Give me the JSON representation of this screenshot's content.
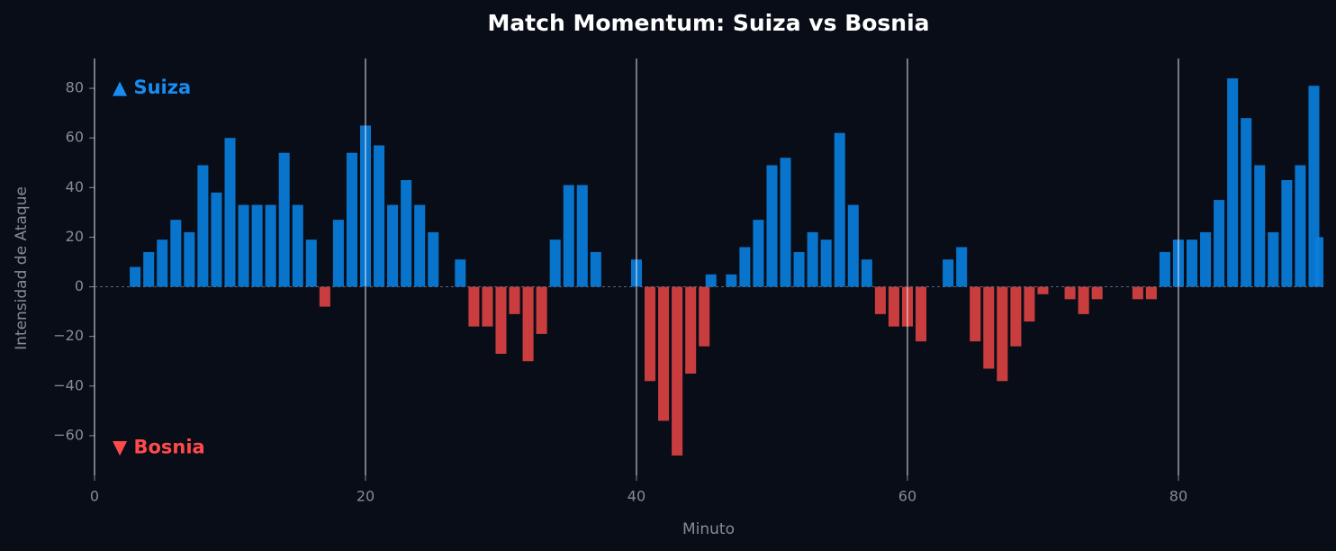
{
  "chart_data": {
    "type": "bar",
    "title": "Match Momentum: Suiza vs Bosnia",
    "x_label": "Minuto",
    "y_label": "Intensidad de Ataque",
    "x": [
      3,
      4,
      5,
      6,
      7,
      8,
      9,
      10,
      11,
      12,
      13,
      14,
      15,
      16,
      17,
      18,
      19,
      20,
      21,
      22,
      23,
      24,
      25,
      27,
      28,
      29,
      30,
      31,
      32,
      33,
      34,
      35,
      36,
      37,
      40,
      41,
      42,
      43,
      44,
      45,
      45.5,
      47,
      48,
      49,
      50,
      51,
      52,
      53,
      54,
      55,
      56,
      57,
      58,
      59,
      60,
      61,
      63,
      64,
      65,
      66,
      67,
      68,
      69,
      70,
      72,
      73,
      74,
      77,
      78,
      79,
      80,
      81,
      82,
      83,
      84,
      85,
      86,
      87,
      88,
      89,
      90,
      90.5
    ],
    "values": [
      8,
      14,
      19,
      27,
      22,
      49,
      38,
      60,
      33,
      33,
      33,
      54,
      33,
      19,
      -8,
      27,
      54,
      65,
      57,
      33,
      43,
      33,
      22,
      11,
      -16,
      -16,
      -27,
      -11,
      -30,
      -19,
      19,
      41,
      41,
      14,
      11,
      -38,
      -54,
      -68,
      -35,
      -24,
      5,
      5,
      16,
      27,
      49,
      52,
      14,
      22,
      19,
      62,
      33,
      11,
      -11,
      -16,
      -16,
      -22,
      11,
      16,
      -22,
      -33,
      -38,
      -24,
      -14,
      -3,
      -5,
      -11,
      -5,
      -5,
      -5,
      14,
      19,
      19,
      22,
      35,
      84,
      68,
      49,
      22,
      43,
      49,
      81,
      20
    ],
    "positive_color": "#0a7fe0",
    "negative_color": "#e04343",
    "annotations": [
      {
        "text": "▲ Suiza",
        "color": "#1a8cf0"
      },
      {
        "text": "▼ Bosnia",
        "color": "#ff4a4a"
      }
    ],
    "xlim": [
      0,
      90.7
    ],
    "ylim": [
      -76,
      92
    ],
    "xticks": [
      0,
      20,
      40,
      60,
      80
    ],
    "yticks": [
      {
        "value": -60,
        "label": "−60"
      },
      {
        "value": -40,
        "label": "−40"
      },
      {
        "value": -20,
        "label": "−20"
      },
      0,
      20,
      40,
      60,
      80
    ],
    "grid": "x"
  }
}
